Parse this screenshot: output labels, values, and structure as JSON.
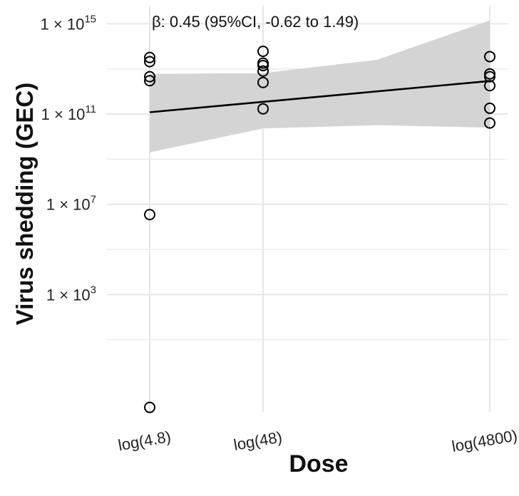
{
  "chart_data": {
    "type": "scatter",
    "title": "",
    "xlabel": "Dose",
    "ylabel": "Virus shedding (GEC)",
    "x_scale": "log",
    "y_scale": "log10",
    "x_ticks": [
      {
        "value": 4.8,
        "label": "log(4.8)"
      },
      {
        "value": 48,
        "label": "log(48)"
      },
      {
        "value": 4800,
        "label": "log(4800)"
      }
    ],
    "y_ticks": [
      {
        "value": 1000.0,
        "label_base": "1 × 10",
        "label_exp": "3"
      },
      {
        "value": 10000000.0,
        "label_base": "1 × 10",
        "label_exp": "7"
      },
      {
        "value": 100000000000.0,
        "label_base": "1 × 10",
        "label_exp": "11"
      },
      {
        "value": 1000000000000000.0,
        "label_base": "1 × 10",
        "label_exp": "15"
      }
    ],
    "ylim_log10": [
      -2.2,
      15.8
    ],
    "grid": true,
    "annotation": "β: 0.45 (95%CI, -0.62 to 1.49)",
    "points": [
      {
        "x": 4.8,
        "y": 32000000000000.0
      },
      {
        "x": 4.8,
        "y": 21000000000000.0
      },
      {
        "x": 4.8,
        "y": 4500000000000.0
      },
      {
        "x": 4.8,
        "y": 3000000000000.0
      },
      {
        "x": 4.8,
        "y": 3500000.0
      },
      {
        "x": 4.8,
        "y": 0.01
      },
      {
        "x": 48,
        "y": 60000000000000.0
      },
      {
        "x": 48,
        "y": 18000000000000.0
      },
      {
        "x": 48,
        "y": 14000000000000.0
      },
      {
        "x": 48,
        "y": 8000000000000.0
      },
      {
        "x": 48,
        "y": 2500000000000.0
      },
      {
        "x": 48,
        "y": 170000000000.0
      },
      {
        "x": 4800,
        "y": 35000000000000.0
      },
      {
        "x": 4800,
        "y": 6000000000000.0
      },
      {
        "x": 4800,
        "y": 4500000000000.0
      },
      {
        "x": 4800,
        "y": 1800000000000.0
      },
      {
        "x": 4800,
        "y": 180000000000.0
      },
      {
        "x": 4800,
        "y": 40000000000.0
      }
    ],
    "fit_line": [
      {
        "x": 4.8,
        "y": 120000000000.0
      },
      {
        "x": 4800,
        "y": 2900000000000.0
      }
    ],
    "confidence_band": [
      {
        "x": 4.8,
        "upper": 6000000000000.0,
        "lower": 2000000000.0
      },
      {
        "x": 48,
        "upper": 6500000000000.0,
        "lower": 23000000000.0
      },
      {
        "x": 480,
        "upper": 25000000000000.0,
        "lower": 32000000000.0
      },
      {
        "x": 4800,
        "upper": 1400000000000000.0,
        "lower": 25000000000.0
      }
    ],
    "colors": {
      "point_stroke": "#000000",
      "fit_line": "#000000",
      "band_fill": "#d4d4d4",
      "grid": "#e6e6e6"
    }
  }
}
